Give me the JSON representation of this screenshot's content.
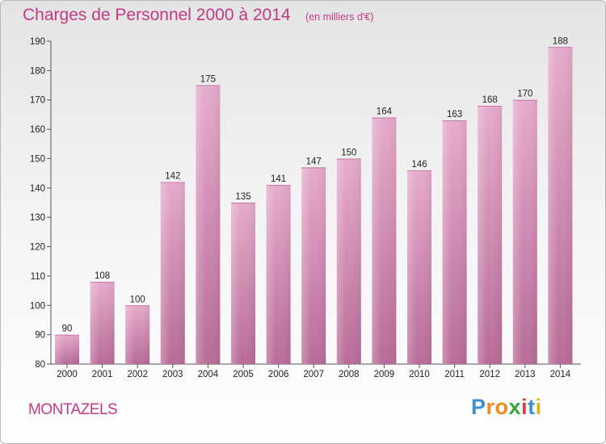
{
  "header": {
    "title": "Charges de Personnel 2000 à 2014",
    "subtitle": "(en milliers d'€)"
  },
  "footer": {
    "commune": "MONTAZELS",
    "logo": {
      "letters": [
        "P",
        "r",
        "o",
        "x",
        "i",
        "t",
        "i"
      ],
      "colors": [
        "#3f8fd0",
        "#f08a1c",
        "#f08a1c",
        "#3aa63a",
        "#e23c3c",
        "#3f8fd0",
        "#e2b21c"
      ]
    }
  },
  "colors": {
    "bar": "#d889b6",
    "bar_light": "#e3a8cb",
    "text_accent": "#c33a83"
  },
  "chart_data": {
    "type": "bar",
    "categories": [
      "2000",
      "2001",
      "2002",
      "2003",
      "2004",
      "2005",
      "2006",
      "2007",
      "2008",
      "2009",
      "2010",
      "2011",
      "2012",
      "2013",
      "2014"
    ],
    "values": [
      90,
      108,
      100,
      142,
      175,
      135,
      141,
      147,
      150,
      164,
      146,
      163,
      168,
      170,
      188
    ],
    "ylim": [
      80,
      190
    ],
    "yticks": [
      80,
      90,
      100,
      110,
      120,
      130,
      140,
      150,
      160,
      170,
      180,
      190
    ],
    "grid": false,
    "legend": "none"
  }
}
